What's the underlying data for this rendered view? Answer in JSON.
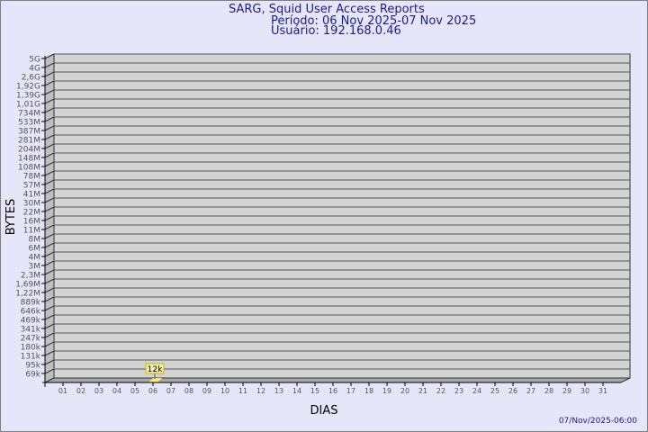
{
  "header": {
    "title": "SARG, Squid User Access Reports",
    "period": "Período: 06 Nov 2025-07 Nov 2025",
    "user": "Usuário: 192.168.0.46"
  },
  "footer": {
    "timestamp": "07/Nov/2025-06:00"
  },
  "colors": {
    "background": "#e6e6fa",
    "plot": "#d3d3d3",
    "bar": "#ffe680",
    "title": "#1a1a8c"
  },
  "chart_data": {
    "type": "bar",
    "xlabel": "DIAS",
    "ylabel": "BYTES",
    "grid": true,
    "y_scale": "log",
    "y_tick_labels": [
      "5G",
      "4G",
      "2,6G",
      "1,92G",
      "1,39G",
      "1,01G",
      "734M",
      "533M",
      "387M",
      "281M",
      "204M",
      "148M",
      "108M",
      "78M",
      "57M",
      "41M",
      "30M",
      "22M",
      "16M",
      "11M",
      "8M",
      "6M",
      "4M",
      "3M",
      "2,3M",
      "1,69M",
      "1,22M",
      "889k",
      "646k",
      "469k",
      "341k",
      "247k",
      "180k",
      "131k",
      "95k",
      "69k"
    ],
    "categories": [
      "01",
      "02",
      "03",
      "04",
      "05",
      "06",
      "07",
      "08",
      "09",
      "10",
      "11",
      "12",
      "13",
      "14",
      "15",
      "16",
      "17",
      "18",
      "19",
      "20",
      "21",
      "22",
      "23",
      "24",
      "25",
      "26",
      "27",
      "28",
      "29",
      "30",
      "31"
    ],
    "series": [
      {
        "points": [
          {
            "x": "06",
            "y": 12000,
            "label": "12k"
          }
        ]
      }
    ]
  }
}
